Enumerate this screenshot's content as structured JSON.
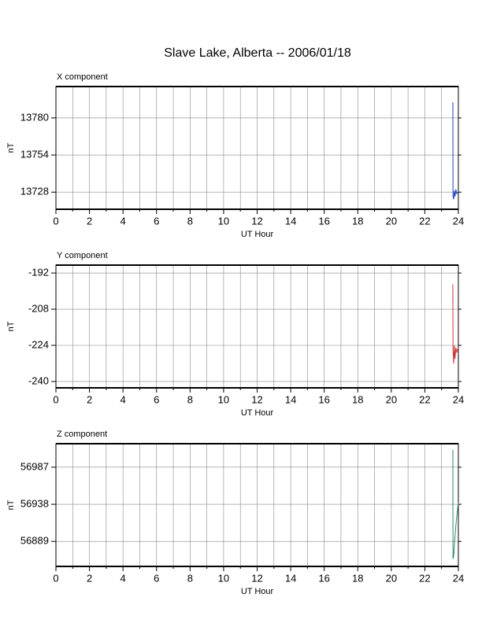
{
  "title": "Slave Lake, Alberta -- 2006/01/18",
  "chart_data": [
    {
      "type": "line",
      "title": "X component",
      "xlabel": "UT Hour",
      "ylabel": "nT",
      "xlim": [
        0,
        24
      ],
      "xticks": [
        0,
        2,
        4,
        6,
        8,
        10,
        12,
        14,
        16,
        18,
        20,
        22,
        24
      ],
      "xminorticks": [
        1,
        3,
        5,
        7,
        9,
        11,
        13,
        15,
        17,
        19,
        21,
        23
      ],
      "ylim": [
        13716,
        13802
      ],
      "yticks": [
        13728,
        13754,
        13780
      ],
      "grid": true,
      "x": [
        23.67,
        23.68,
        23.72,
        23.76,
        23.8,
        23.85,
        23.9,
        24.0
      ],
      "series": [
        {
          "color": "#1f3fbf",
          "values": [
            13791,
            13725,
            13723,
            13729,
            13725,
            13730,
            13727,
            13728
          ]
        }
      ]
    },
    {
      "type": "line",
      "title": "Y component",
      "xlabel": "UT Hour",
      "ylabel": "nT",
      "xlim": [
        0,
        24
      ],
      "xticks": [
        0,
        2,
        4,
        6,
        8,
        10,
        12,
        14,
        16,
        18,
        20,
        22,
        24
      ],
      "xminorticks": [
        1,
        3,
        5,
        7,
        9,
        11,
        13,
        15,
        17,
        19,
        21,
        23
      ],
      "ylim": [
        -242.8,
        -188.5
      ],
      "yticks": [
        -240,
        -224,
        -208,
        -192
      ],
      "grid": true,
      "x": [
        23.67,
        23.68,
        23.72,
        23.76,
        23.8,
        23.85,
        23.9,
        24.0
      ],
      "series": [
        {
          "color": "#d03030",
          "values": [
            -197,
            -226,
            -232,
            -224,
            -230,
            -225,
            -227,
            -225
          ]
        }
      ]
    },
    {
      "type": "line",
      "title": "Z component",
      "xlabel": "UT Hour",
      "ylabel": "nT",
      "xlim": [
        0,
        24
      ],
      "xticks": [
        0,
        2,
        4,
        6,
        8,
        10,
        12,
        14,
        16,
        18,
        20,
        22,
        24
      ],
      "xminorticks": [
        1,
        3,
        5,
        7,
        9,
        11,
        13,
        15,
        17,
        19,
        21,
        23
      ],
      "ylim": [
        56856,
        57018
      ],
      "yticks": [
        56889,
        56938,
        56987
      ],
      "grid": true,
      "x": [
        23.67,
        23.68,
        23.72,
        23.78,
        23.85,
        23.92,
        24.0
      ],
      "series": [
        {
          "color": "#2a8a6a",
          "values": [
            57010,
            56866,
            56870,
            56890,
            56910,
            56925,
            56940
          ]
        }
      ]
    }
  ]
}
